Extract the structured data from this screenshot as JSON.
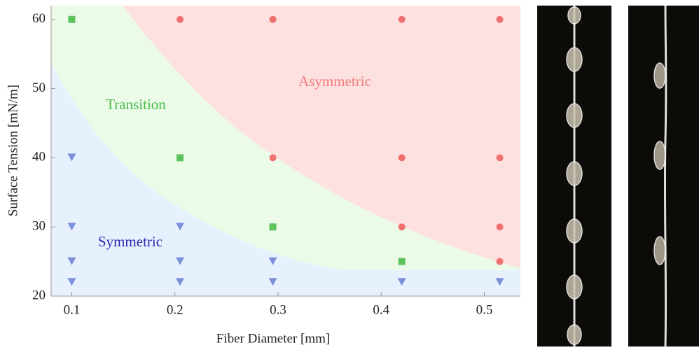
{
  "chart_data": {
    "type": "scatter",
    "xlabel": "Fiber Diameter [mm]",
    "ylabel": "Surface Tension [mN/m]",
    "xlim": [
      0.08,
      0.535
    ],
    "ylim": [
      20,
      62
    ],
    "xticks": [
      0.1,
      0.2,
      0.3,
      0.4,
      0.5
    ],
    "yticks": [
      20,
      30,
      40,
      50,
      60
    ],
    "series": [
      {
        "name": "Symmetric",
        "color": "#7b8fdb",
        "marker": "triangle",
        "x": [
          0.1,
          0.1,
          0.1,
          0.1,
          0.205,
          0.205,
          0.205,
          0.295,
          0.295,
          0.42,
          0.515
        ],
        "values": [
          40,
          30,
          25,
          22,
          30,
          25,
          22,
          25,
          22,
          22,
          22
        ]
      },
      {
        "name": "Transition",
        "color": "#5cc35c",
        "marker": "square",
        "x": [
          0.1,
          0.205,
          0.295,
          0.42
        ],
        "values": [
          60,
          40,
          30,
          25
        ]
      },
      {
        "name": "Asymmetric",
        "color": "#f07070",
        "marker": "circle",
        "x": [
          0.205,
          0.295,
          0.42,
          0.515,
          0.295,
          0.42,
          0.515,
          0.42,
          0.515,
          0.515
        ],
        "values": [
          60,
          60,
          60,
          60,
          40,
          40,
          40,
          30,
          30,
          25
        ]
      }
    ]
  }
}
